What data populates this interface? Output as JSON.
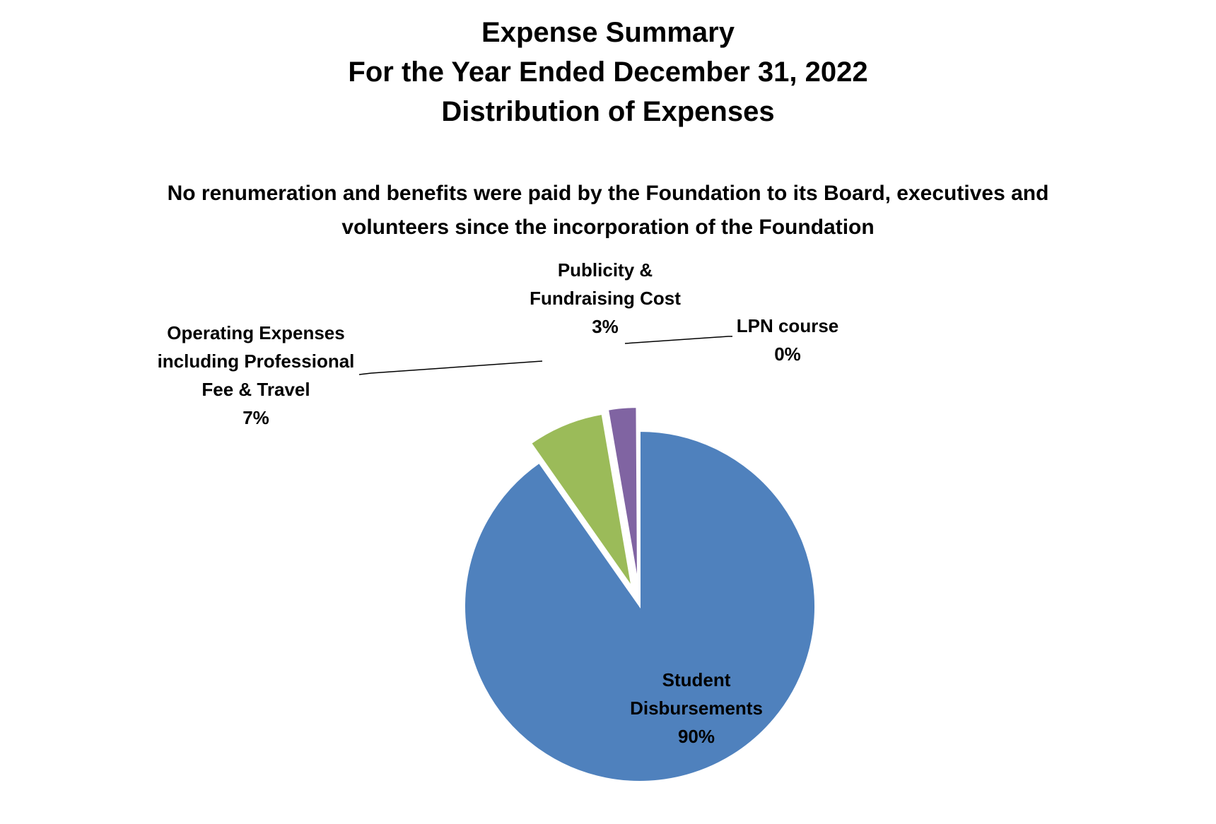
{
  "chart_data": {
    "type": "pie",
    "title": [
      "Expense Summary",
      "For the Year Ended December 31, 2022",
      "Distribution of Expenses"
    ],
    "subtitle": [
      "No renumeration and benefits were paid by the Foundation to its Board, executives and",
      "volunteers since the incorporation of the Foundation"
    ],
    "slices": [
      {
        "label": "Student Disbursements",
        "label_lines": [
          "Student",
          "Disbursements"
        ],
        "percent_label": "90%",
        "value": 90,
        "color": "#4F81BD"
      },
      {
        "label": "Operating Expenses including Professional Fee & Travel",
        "label_lines": [
          "Operating Expenses",
          "including Professional",
          "Fee & Travel"
        ],
        "percent_label": "7%",
        "value": 7,
        "color": "#9BBB59"
      },
      {
        "label": "Publicity & Fundraising Cost",
        "label_lines": [
          "Publicity &",
          "Fundraising Cost"
        ],
        "percent_label": "3%",
        "value": 2.6,
        "color": "#8064A2"
      },
      {
        "label": "LPN course",
        "label_lines": [
          "LPN course"
        ],
        "percent_label": "0%",
        "value": 0.1,
        "color": "#4BACC6"
      }
    ]
  }
}
